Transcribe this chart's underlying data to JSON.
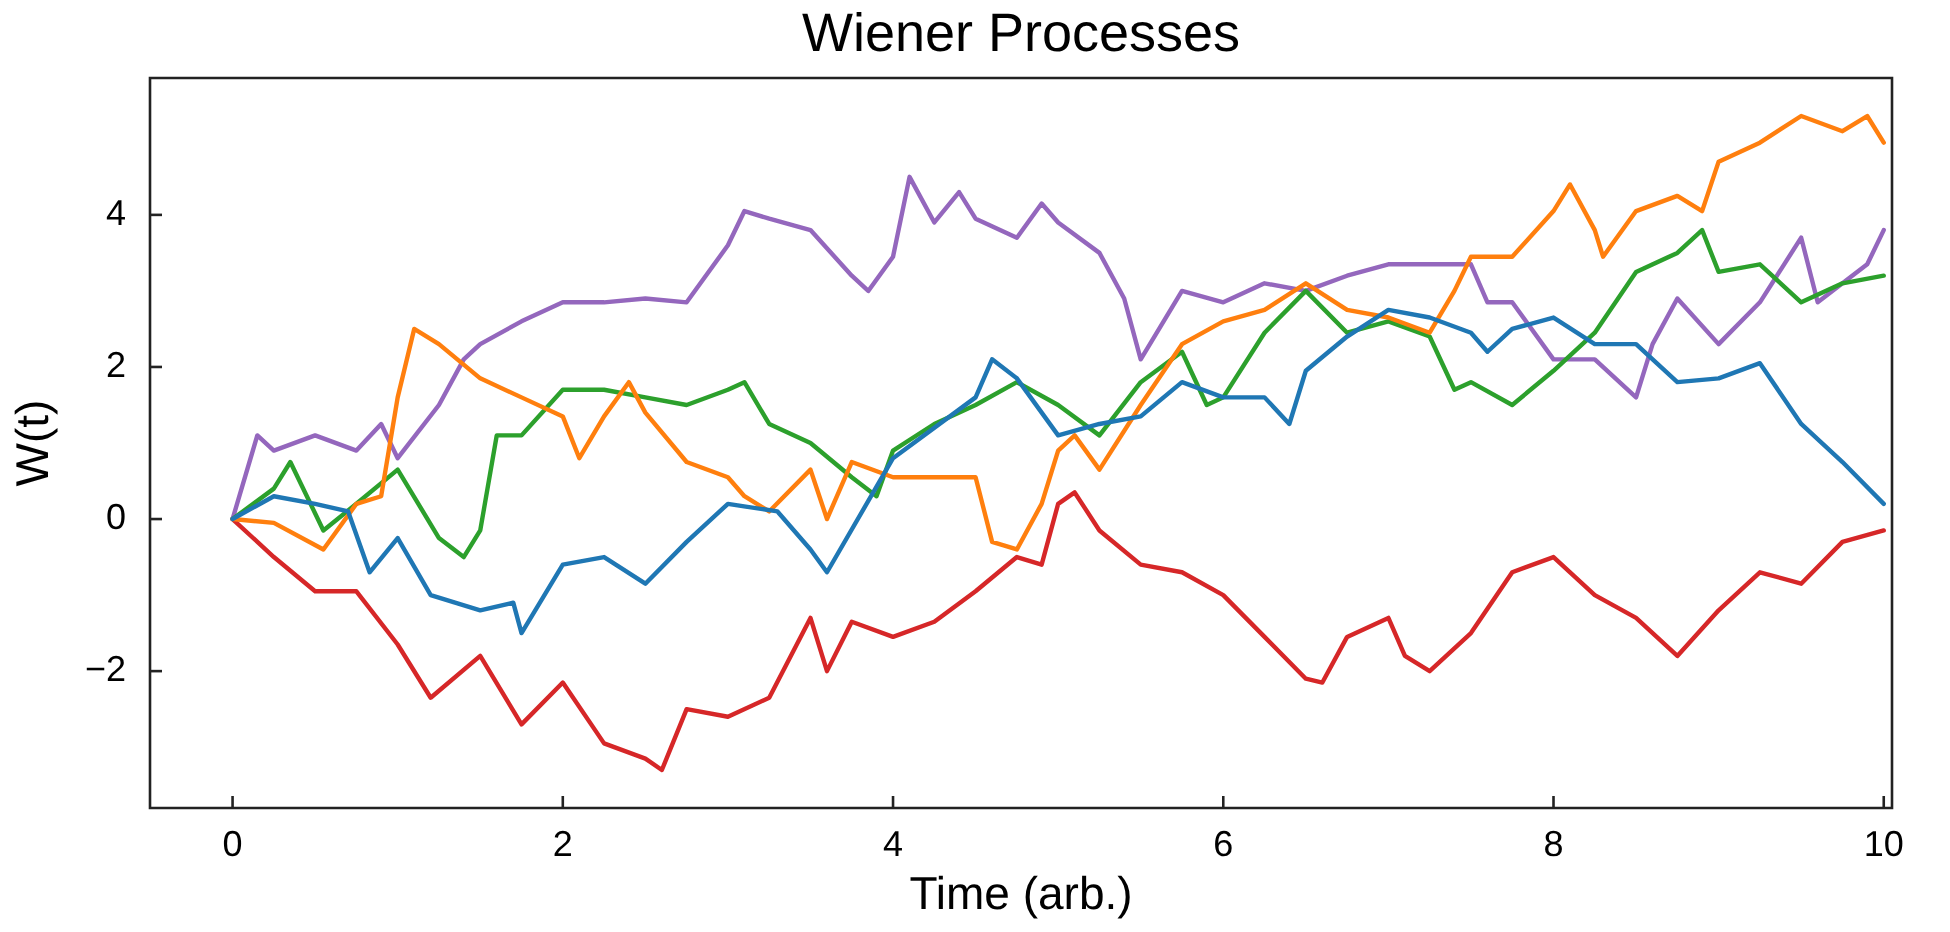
{
  "chart_data": {
    "type": "line",
    "title": "Wiener Processes",
    "xlabel": "Time (arb.)",
    "ylabel": "W(t)",
    "xlim": [
      -0.5,
      10.05
    ],
    "ylim": [
      -3.8,
      5.8
    ],
    "xticks": [
      0,
      2,
      4,
      6,
      8,
      10
    ],
    "yticks": [
      -2,
      0,
      2,
      4
    ],
    "grid": false,
    "legend": false,
    "marker": "none",
    "line_style": "solid",
    "series": [
      {
        "color": "#1f77b4",
        "x": [
          0,
          0.25,
          0.5,
          0.7,
          0.83,
          1,
          1.2,
          1.5,
          1.7,
          1.75,
          2,
          2.25,
          2.5,
          2.75,
          3,
          3.3,
          3.5,
          3.6,
          4,
          4.5,
          4.6,
          4.75,
          5,
          5.25,
          5.5,
          5.75,
          6,
          6.25,
          6.4,
          6.5,
          6.75,
          7,
          7.25,
          7.5,
          7.6,
          7.75,
          8,
          8.25,
          8.5,
          8.75,
          9,
          9.25,
          9.5,
          9.75,
          10
        ],
        "values": [
          0,
          0.3,
          0.2,
          0.1,
          -0.7,
          -0.25,
          -1.0,
          -1.2,
          -1.1,
          -1.5,
          -0.6,
          -0.5,
          -0.85,
          -0.3,
          0.2,
          0.1,
          -0.4,
          -0.7,
          0.8,
          1.6,
          2.1,
          1.85,
          1.1,
          1.25,
          1.35,
          1.8,
          1.6,
          1.6,
          1.25,
          1.95,
          2.4,
          2.75,
          2.65,
          2.45,
          2.2,
          2.5,
          2.65,
          2.3,
          2.3,
          1.8,
          1.85,
          2.05,
          1.25,
          0.75,
          0.2
        ]
      },
      {
        "color": "#ff7f0e",
        "x": [
          0,
          0.25,
          0.55,
          0.75,
          0.9,
          1,
          1.1,
          1.25,
          1.5,
          1.75,
          2,
          2.1,
          2.25,
          2.4,
          2.5,
          2.75,
          3,
          3.1,
          3.25,
          3.5,
          3.6,
          3.75,
          4,
          4.25,
          4.5,
          4.6,
          4.75,
          4.9,
          5,
          5.1,
          5.25,
          5.5,
          5.75,
          6,
          6.25,
          6.5,
          6.75,
          7,
          7.25,
          7.4,
          7.5,
          7.75,
          8,
          8.1,
          8.25,
          8.3,
          8.5,
          8.75,
          8.9,
          9,
          9.25,
          9.5,
          9.75,
          9.9,
          10
        ],
        "values": [
          0,
          -0.05,
          -0.4,
          0.2,
          0.3,
          1.6,
          2.5,
          2.3,
          1.85,
          1.6,
          1.35,
          0.8,
          1.35,
          1.8,
          1.4,
          0.75,
          0.55,
          0.3,
          0.1,
          0.65,
          0,
          0.75,
          0.55,
          0.55,
          0.55,
          -0.3,
          -0.4,
          0.2,
          0.9,
          1.1,
          0.65,
          1.5,
          2.3,
          2.6,
          2.75,
          3.1,
          2.75,
          2.65,
          2.45,
          3.0,
          3.45,
          3.45,
          4.05,
          4.4,
          3.8,
          3.45,
          4.05,
          4.25,
          4.05,
          4.7,
          4.95,
          5.3,
          5.1,
          5.3,
          4.95
        ]
      },
      {
        "color": "#2ca02c",
        "x": [
          0,
          0.25,
          0.35,
          0.55,
          0.75,
          1,
          1.25,
          1.4,
          1.5,
          1.6,
          1.75,
          2,
          2.25,
          2.5,
          2.75,
          3,
          3.1,
          3.25,
          3.5,
          3.75,
          3.9,
          4,
          4.25,
          4.5,
          4.75,
          5,
          5.25,
          5.5,
          5.75,
          5.9,
          6,
          6.25,
          6.5,
          6.75,
          7,
          7.25,
          7.4,
          7.5,
          7.75,
          8,
          8.25,
          8.5,
          8.75,
          8.9,
          9,
          9.25,
          9.5,
          9.75,
          10
        ],
        "values": [
          0,
          0.4,
          0.75,
          -0.15,
          0.2,
          0.65,
          -0.25,
          -0.5,
          -0.15,
          1.1,
          1.1,
          1.7,
          1.7,
          1.6,
          1.5,
          1.7,
          1.8,
          1.25,
          1.0,
          0.55,
          0.3,
          0.9,
          1.25,
          1.5,
          1.8,
          1.5,
          1.1,
          1.8,
          2.2,
          1.5,
          1.6,
          2.45,
          3.0,
          2.45,
          2.6,
          2.4,
          1.7,
          1.8,
          1.5,
          1.95,
          2.45,
          3.25,
          3.5,
          3.8,
          3.25,
          3.35,
          2.85,
          3.1,
          3.2
        ]
      },
      {
        "color": "#d62728",
        "x": [
          0,
          0.25,
          0.5,
          0.75,
          1,
          1.2,
          1.5,
          1.75,
          2,
          2.25,
          2.5,
          2.6,
          2.75,
          3,
          3.25,
          3.5,
          3.6,
          3.75,
          4,
          4.25,
          4.5,
          4.75,
          4.9,
          5,
          5.1,
          5.25,
          5.5,
          5.75,
          6,
          6.25,
          6.5,
          6.6,
          6.75,
          7,
          7.1,
          7.25,
          7.5,
          7.75,
          8,
          8.25,
          8.5,
          8.75,
          9,
          9.25,
          9.5,
          9.75,
          10
        ],
        "values": [
          0,
          -0.5,
          -0.95,
          -0.95,
          -1.65,
          -2.35,
          -1.8,
          -2.7,
          -2.15,
          -2.95,
          -3.15,
          -3.3,
          -2.5,
          -2.6,
          -2.35,
          -1.3,
          -2.0,
          -1.35,
          -1.55,
          -1.35,
          -0.95,
          -0.5,
          -0.6,
          0.2,
          0.35,
          -0.15,
          -0.6,
          -0.7,
          -1.0,
          -1.55,
          -2.1,
          -2.15,
          -1.55,
          -1.3,
          -1.8,
          -2.0,
          -1.5,
          -0.7,
          -0.5,
          -1.0,
          -1.3,
          -1.8,
          -1.2,
          -0.7,
          -0.85,
          -0.3,
          -0.15
        ]
      },
      {
        "color": "#9467bd",
        "x": [
          0,
          0.15,
          0.25,
          0.5,
          0.75,
          0.9,
          1,
          1.25,
          1.4,
          1.5,
          1.75,
          2,
          2.25,
          2.5,
          2.75,
          3,
          3.1,
          3.25,
          3.5,
          3.75,
          3.85,
          4,
          4.1,
          4.25,
          4.4,
          4.5,
          4.75,
          4.9,
          5,
          5.25,
          5.4,
          5.5,
          5.75,
          6,
          6.25,
          6.5,
          6.75,
          7,
          7.25,
          7.5,
          7.6,
          7.75,
          8,
          8.25,
          8.5,
          8.6,
          8.75,
          9,
          9.25,
          9.5,
          9.6,
          9.75,
          9.9,
          10
        ],
        "values": [
          0,
          1.1,
          0.9,
          1.1,
          0.9,
          1.25,
          0.8,
          1.5,
          2.1,
          2.3,
          2.6,
          2.85,
          2.85,
          2.9,
          2.85,
          3.6,
          4.05,
          3.95,
          3.8,
          3.2,
          3.0,
          3.45,
          4.5,
          3.9,
          4.3,
          3.95,
          3.7,
          4.15,
          3.9,
          3.5,
          2.9,
          2.1,
          3.0,
          2.85,
          3.1,
          3.0,
          3.2,
          3.35,
          3.35,
          3.35,
          2.85,
          2.85,
          2.1,
          2.1,
          1.6,
          2.3,
          2.9,
          2.3,
          2.85,
          3.7,
          2.85,
          3.1,
          3.35,
          3.8
        ]
      }
    ]
  }
}
